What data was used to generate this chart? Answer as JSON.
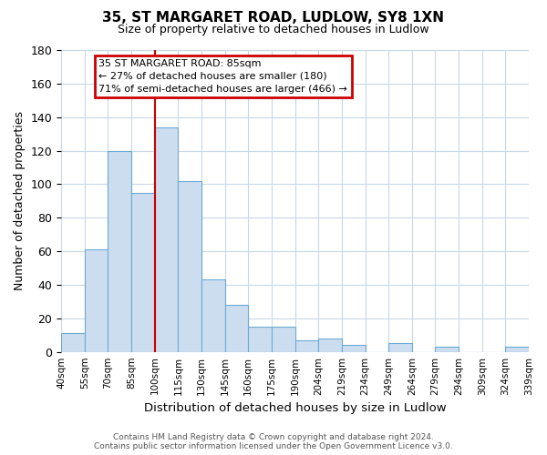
{
  "title": "35, ST MARGARET ROAD, LUDLOW, SY8 1XN",
  "subtitle": "Size of property relative to detached houses in Ludlow",
  "xlabel": "Distribution of detached houses by size in Ludlow",
  "ylabel": "Number of detached properties",
  "bin_labels": [
    "40sqm",
    "55sqm",
    "70sqm",
    "85sqm",
    "100sqm",
    "115sqm",
    "130sqm",
    "145sqm",
    "160sqm",
    "175sqm",
    "190sqm",
    "204sqm",
    "219sqm",
    "234sqm",
    "249sqm",
    "264sqm",
    "279sqm",
    "294sqm",
    "309sqm",
    "324sqm",
    "339sqm"
  ],
  "bar_heights": [
    11,
    61,
    120,
    95,
    134,
    102,
    43,
    28,
    15,
    15,
    7,
    8,
    4,
    0,
    5,
    0,
    3,
    0,
    0,
    3
  ],
  "bar_color": "#cdddf0",
  "bar_edge_color": "#6aaad4",
  "vline_x_index": 3,
  "vline_color": "#cc0000",
  "ylim": [
    0,
    180
  ],
  "yticks": [
    0,
    20,
    40,
    60,
    80,
    100,
    120,
    140,
    160,
    180
  ],
  "annotation_title": "35 ST MARGARET ROAD: 85sqm",
  "annotation_line1": "← 27% of detached houses are smaller (180)",
  "annotation_line2": "71% of semi-detached houses are larger (466) →",
  "annotation_box_color": "#ffffff",
  "annotation_box_edge": "#cc0000",
  "footer1": "Contains HM Land Registry data © Crown copyright and database right 2024.",
  "footer2": "Contains public sector information licensed under the Open Government Licence v3.0.",
  "background_color": "#ffffff",
  "grid_color": "#c8d8e8"
}
